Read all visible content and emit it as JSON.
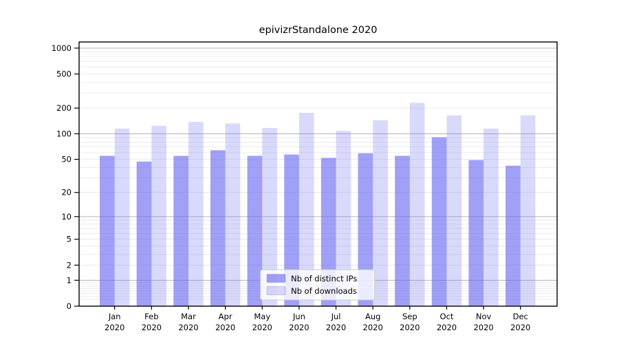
{
  "chart_data": {
    "type": "bar",
    "title": "epivizrStandalone 2020",
    "categories": [
      "Jan 2020",
      "Feb 2020",
      "Mar 2020",
      "Apr 2020",
      "May 2020",
      "Jun 2020",
      "Jul 2020",
      "Aug 2020",
      "Sep 2020",
      "Oct 2020",
      "Nov 2020",
      "Dec 2020"
    ],
    "series": [
      {
        "name": "Nb of distinct IPs",
        "values": [
          55,
          47,
          55,
          64,
          55,
          57,
          52,
          59,
          55,
          91,
          49,
          42
        ],
        "base_color": "#6666f0",
        "alpha": 0.62
      },
      {
        "name": "Nb of downloads",
        "values": [
          115,
          124,
          138,
          132,
          117,
          176,
          108,
          144,
          230,
          164,
          115,
          164
        ],
        "base_color": "#6666f0",
        "alpha": 0.25
      }
    ],
    "yscale": "log1p",
    "yticks": [
      0,
      1,
      2,
      5,
      10,
      20,
      50,
      100,
      200,
      500,
      1000
    ],
    "ylim": [
      0,
      1180
    ],
    "xlabel": "",
    "ylabel": "",
    "grid": true,
    "legend": {
      "position": "lower-center"
    },
    "colors": {
      "major_gridline": "#b3b3b3",
      "minor_gridline": "#eaeaea",
      "axis_frame": "#000000",
      "tick_label": "#000000",
      "legend_border": "#cccccc"
    }
  }
}
